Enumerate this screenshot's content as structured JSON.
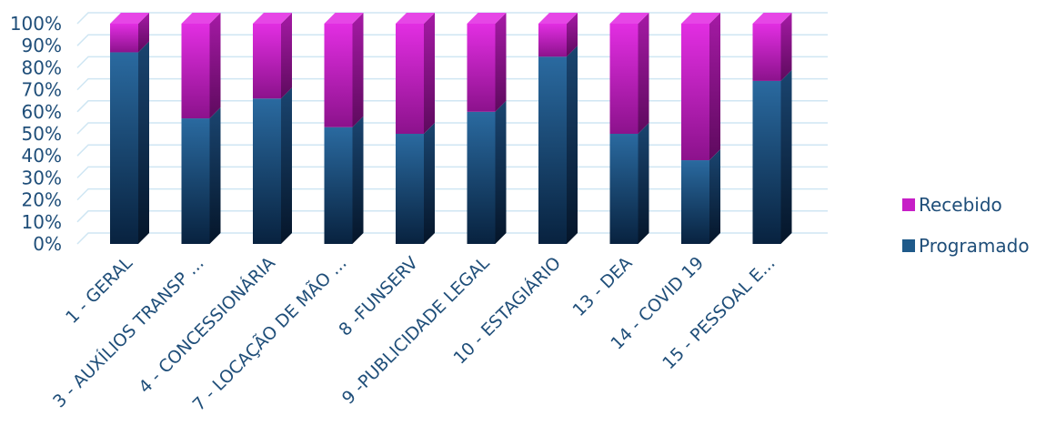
{
  "chart_data": {
    "type": "bar",
    "stacked": "percent",
    "style": "3d-cylinder-like columns with depth",
    "categories": [
      "1 - GERAL",
      "3 - AUXÍLIOS TRANSP ...",
      "4 - CONCESSIONÁRIA",
      "7 - LOCAÇÃO DE MÃO ...",
      "8 -FUNSERV",
      "9 -PUBLICIDADE LEGAL",
      "10 - ESTAGIÁRIO",
      "13 - DEA",
      "14 - COVID 19",
      "15 - PESSOAL E..."
    ],
    "series": [
      {
        "name": "Programado",
        "values": [
          87,
          57,
          66,
          53,
          50,
          60,
          85,
          50,
          38,
          74
        ]
      },
      {
        "name": "Recebido",
        "values": [
          13,
          43,
          34,
          47,
          50,
          40,
          15,
          50,
          62,
          26
        ]
      }
    ],
    "y_ticks": [
      "0%",
      "10%",
      "20%",
      "30%",
      "40%",
      "50%",
      "60%",
      "70%",
      "80%",
      "90%",
      "100%"
    ],
    "ylim": [
      0,
      100
    ],
    "grid": true,
    "legend_position": "right",
    "colors": {
      "Programado": "#1f5a8a",
      "Recebido": "#c71fc7",
      "grid": "#cfe6f3",
      "text": "#1f4e79"
    }
  }
}
